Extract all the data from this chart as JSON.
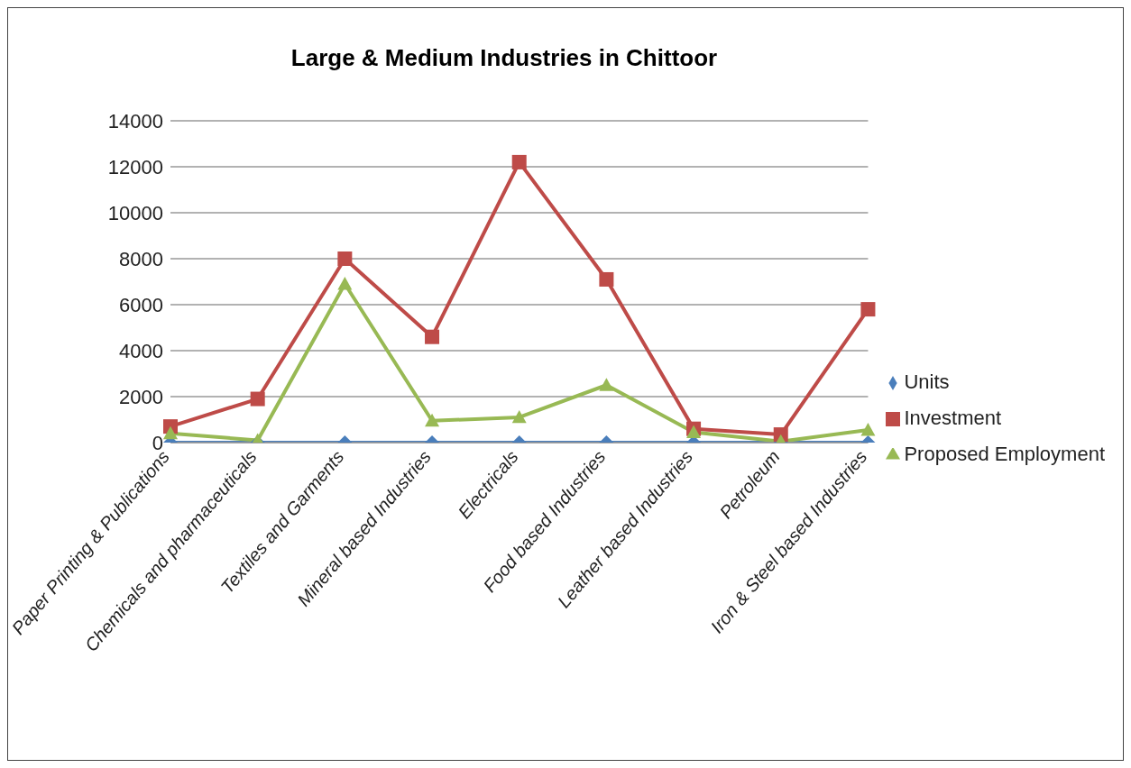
{
  "chart_data": {
    "type": "line",
    "title": "Large & Medium Industries in Chittoor",
    "categories": [
      "Paper Printing & Publications",
      "Chemicals and pharmaceuticals",
      "Textiles and Garments",
      "Mineral based Industries",
      "Electricals",
      "Food based Industries",
      "Leather based Industries",
      "Petroleum",
      "Iron & Steel based Industries"
    ],
    "series": [
      {
        "name": "Units",
        "color": "#4a7ebb",
        "marker": "diamond",
        "values": [
          0,
          0,
          0,
          0,
          0,
          0,
          0,
          0,
          0
        ]
      },
      {
        "name": "Investment",
        "color": "#be4b48",
        "marker": "square",
        "values": [
          700,
          1900,
          8000,
          4600,
          12200,
          7100,
          600,
          350,
          5800
        ]
      },
      {
        "name": "Proposed Employment",
        "color": "#98b954",
        "marker": "triangle",
        "values": [
          400,
          100,
          6900,
          950,
          1100,
          2500,
          450,
          50,
          550
        ]
      }
    ],
    "ylim": [
      0,
      14000
    ],
    "yticks": [
      0,
      2000,
      4000,
      6000,
      8000,
      10000,
      12000,
      14000
    ],
    "grid": "y",
    "legend": "right",
    "line_style": "solid"
  }
}
